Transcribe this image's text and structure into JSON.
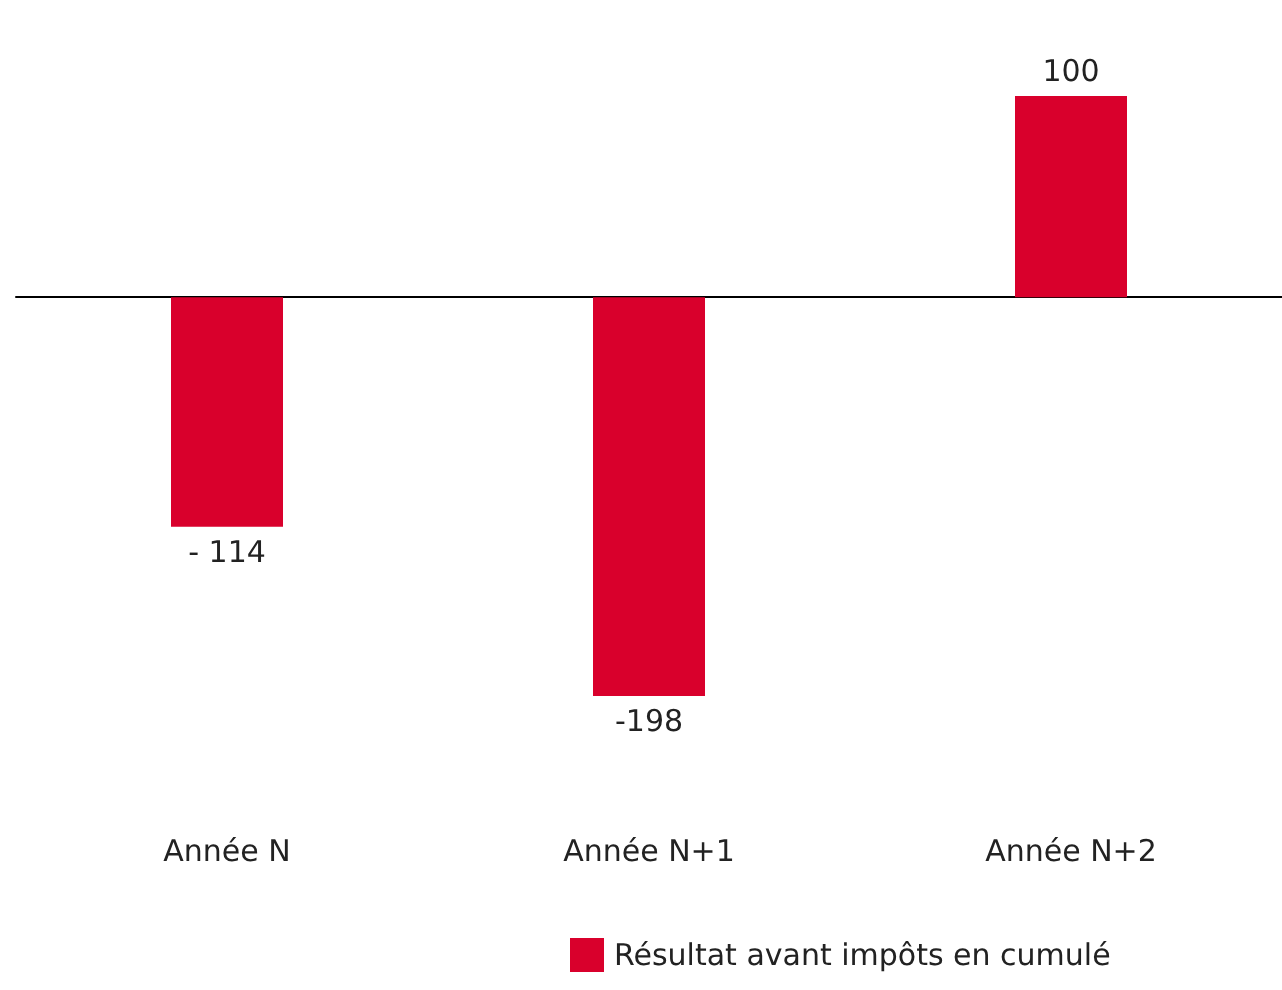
{
  "chart_data": {
    "type": "bar",
    "categories": [
      "Année N",
      "Année N+1",
      "Année N+2"
    ],
    "series": [
      {
        "name": "Résultat avant impôts en cumulé",
        "color": "#d9002c",
        "values": [
          -114,
          -198,
          100
        ],
        "value_labels": [
          "- 114",
          "-198",
          "100"
        ]
      }
    ],
    "legend": "bottom",
    "grid": false
  }
}
